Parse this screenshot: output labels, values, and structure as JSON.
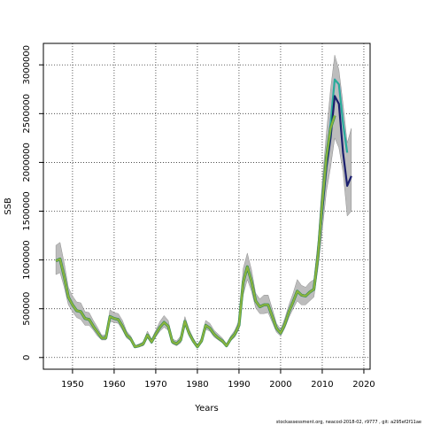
{
  "chart_data": {
    "type": "line",
    "xlabel": "Years",
    "ylabel": "SSB",
    "xlim": [
      1943,
      2021.5
    ],
    "ylim": [
      -120000,
      3220000
    ],
    "xticks": [
      1950,
      1960,
      1970,
      1980,
      1990,
      2000,
      2010,
      2020
    ],
    "yticks": [
      0,
      500000,
      1000000,
      1500000,
      2000000,
      2500000,
      3000000
    ],
    "grid": true,
    "colors": {
      "band": "#bdbdbd",
      "main": "#8db43c",
      "main_edge": "#2e8b57",
      "retro_blue": "#2c8ad0",
      "retro_teal": "#29b38f",
      "retro_navy": "#1b1f6e",
      "grid": "#333333"
    },
    "series": [
      {
        "x": [
          1946,
          1947,
          1948,
          1949,
          1950,
          1951,
          1952,
          1953,
          1954,
          1955,
          1956,
          1957,
          1958,
          1959,
          1960,
          1961,
          1962,
          1963,
          1964,
          1965,
          1966,
          1967,
          1968,
          1969,
          1970,
          1971,
          1972,
          1973,
          1974,
          1975,
          1976,
          1977,
          1978,
          1979,
          1980,
          1981,
          1982,
          1983,
          1984,
          1985,
          1986,
          1987,
          1988,
          1989,
          1990,
          1991,
          1992,
          1993,
          1994,
          1995,
          1996,
          1997,
          1998,
          1999,
          2000,
          2001,
          2002,
          2003,
          2004,
          2005,
          2006,
          2007,
          2008,
          2009,
          2010,
          2011,
          2012,
          2013
        ],
        "values": [
          990000,
          1010000,
          830000,
          620000,
          540000,
          480000,
          470000,
          400000,
          390000,
          320000,
          260000,
          200000,
          200000,
          420000,
          400000,
          390000,
          320000,
          230000,
          190000,
          110000,
          120000,
          140000,
          230000,
          160000,
          240000,
          310000,
          360000,
          320000,
          160000,
          140000,
          180000,
          370000,
          250000,
          170000,
          110000,
          170000,
          330000,
          300000,
          240000,
          200000,
          170000,
          120000,
          190000,
          240000,
          330000,
          770000,
          930000,
          780000,
          580000,
          520000,
          540000,
          540000,
          420000,
          300000,
          250000,
          340000,
          470000,
          570000,
          680000,
          640000,
          630000,
          670000,
          700000,
          1050000,
          1580000,
          2050000,
          2350000,
          2480000
        ]
      },
      {
        "x": [
          1946,
          1947,
          1948,
          1949,
          1950,
          1951,
          1952,
          1953,
          1954,
          1955,
          1956,
          1957,
          1958,
          1959,
          1960,
          1961,
          1962,
          1963,
          1964,
          1965,
          1966,
          1967,
          1968,
          1969,
          1970,
          1971,
          1972,
          1973,
          1974,
          1975,
          1976,
          1977,
          1978,
          1979,
          1980,
          1981,
          1982,
          1983,
          1984,
          1985,
          1986,
          1987,
          1988,
          1989,
          1990,
          1991,
          1992,
          1993,
          1994,
          1995,
          1996,
          1997,
          1998,
          1999,
          2000,
          2001,
          2002,
          2003,
          2004,
          2005,
          2006,
          2007,
          2008,
          2009,
          2010,
          2011,
          2012,
          2013,
          2014,
          2015,
          2016
        ],
        "values": [
          990000,
          1010000,
          830000,
          620000,
          540000,
          480000,
          470000,
          400000,
          390000,
          320000,
          260000,
          200000,
          200000,
          420000,
          400000,
          390000,
          320000,
          230000,
          190000,
          110000,
          120000,
          140000,
          230000,
          160000,
          240000,
          310000,
          360000,
          320000,
          160000,
          140000,
          180000,
          370000,
          250000,
          170000,
          110000,
          170000,
          330000,
          300000,
          240000,
          200000,
          170000,
          120000,
          190000,
          240000,
          330000,
          770000,
          930000,
          780000,
          580000,
          520000,
          540000,
          540000,
          420000,
          300000,
          250000,
          340000,
          470000,
          570000,
          680000,
          640000,
          630000,
          670000,
          700000,
          1050000,
          1500000,
          2000000,
          2400000,
          2850000,
          2800000,
          2400000,
          2100000
        ]
      },
      {
        "x": [
          1946,
          1947,
          1948,
          1949,
          1950,
          1951,
          1952,
          1953,
          1954,
          1955,
          1956,
          1957,
          1958,
          1959,
          1960,
          1961,
          1962,
          1963,
          1964,
          1965,
          1966,
          1967,
          1968,
          1969,
          1970,
          1971,
          1972,
          1973,
          1974,
          1975,
          1976,
          1977,
          1978,
          1979,
          1980,
          1981,
          1982,
          1983,
          1984,
          1985,
          1986,
          1987,
          1988,
          1989,
          1990,
          1991,
          1992,
          1993,
          1994,
          1995,
          1996,
          1997,
          1998,
          1999,
          2000,
          2001,
          2002,
          2003,
          2004,
          2005,
          2006,
          2007,
          2008,
          2009,
          2010,
          2011,
          2012,
          2013,
          2014,
          2015,
          2016,
          2017
        ],
        "values": [
          990000,
          1010000,
          830000,
          620000,
          540000,
          480000,
          470000,
          400000,
          390000,
          320000,
          260000,
          200000,
          200000,
          420000,
          400000,
          390000,
          320000,
          230000,
          190000,
          110000,
          120000,
          140000,
          230000,
          160000,
          240000,
          310000,
          360000,
          320000,
          160000,
          140000,
          180000,
          370000,
          250000,
          170000,
          110000,
          170000,
          330000,
          300000,
          240000,
          200000,
          170000,
          120000,
          190000,
          240000,
          330000,
          770000,
          930000,
          780000,
          580000,
          520000,
          540000,
          540000,
          420000,
          300000,
          250000,
          340000,
          470000,
          570000,
          680000,
          640000,
          630000,
          670000,
          700000,
          1050000,
          1500000,
          1950000,
          2250000,
          2680000,
          2600000,
          2100000,
          1760000,
          1860000
        ]
      }
    ],
    "band": {
      "x": [
        1946,
        1947,
        1948,
        1949,
        1950,
        1951,
        1952,
        1953,
        1954,
        1955,
        1956,
        1957,
        1958,
        1959,
        1960,
        1961,
        1962,
        1963,
        1964,
        1965,
        1966,
        1967,
        1968,
        1969,
        1970,
        1971,
        1972,
        1973,
        1974,
        1975,
        1976,
        1977,
        1978,
        1979,
        1980,
        1981,
        1982,
        1983,
        1984,
        1985,
        1986,
        1987,
        1988,
        1989,
        1990,
        1991,
        1992,
        1993,
        1994,
        1995,
        1996,
        1997,
        1998,
        1999,
        2000,
        2001,
        2002,
        2003,
        2004,
        2005,
        2006,
        2007,
        2008,
        2009,
        2010,
        2011,
        2012,
        2013,
        2014,
        2015,
        2016,
        2017
      ],
      "lower": [
        850000,
        870000,
        720000,
        540000,
        470000,
        410000,
        390000,
        330000,
        330000,
        280000,
        220000,
        180000,
        180000,
        370000,
        360000,
        350000,
        280000,
        200000,
        170000,
        100000,
        110000,
        120000,
        200000,
        140000,
        210000,
        270000,
        310000,
        280000,
        140000,
        120000,
        150000,
        330000,
        220000,
        150000,
        100000,
        150000,
        290000,
        270000,
        210000,
        180000,
        150000,
        110000,
        170000,
        210000,
        290000,
        640000,
        800000,
        680000,
        510000,
        450000,
        450000,
        460000,
        360000,
        260000,
        220000,
        300000,
        410000,
        500000,
        580000,
        540000,
        540000,
        580000,
        620000,
        920000,
        1300000,
        1700000,
        1950000,
        2250000,
        2150000,
        1900000,
        1450000,
        1500000
      ],
      "upper": [
        1150000,
        1180000,
        970000,
        720000,
        630000,
        570000,
        560000,
        470000,
        460000,
        380000,
        310000,
        230000,
        230000,
        490000,
        460000,
        450000,
        380000,
        270000,
        220000,
        120000,
        140000,
        160000,
        270000,
        190000,
        280000,
        370000,
        430000,
        380000,
        190000,
        170000,
        220000,
        420000,
        290000,
        200000,
        130000,
        200000,
        380000,
        350000,
        280000,
        240000,
        200000,
        140000,
        220000,
        280000,
        380000,
        910000,
        1070000,
        900000,
        660000,
        600000,
        640000,
        640000,
        500000,
        350000,
        290000,
        400000,
        540000,
        660000,
        800000,
        740000,
        720000,
        770000,
        800000,
        1200000,
        1800000,
        2300000,
        2750000,
        3100000,
        2950000,
        2600000,
        2200000,
        2350000
      ]
    }
  },
  "footer": "stockassessment.org, neacod-2018-02, r9777 ,  git: a295ef2f11ae"
}
